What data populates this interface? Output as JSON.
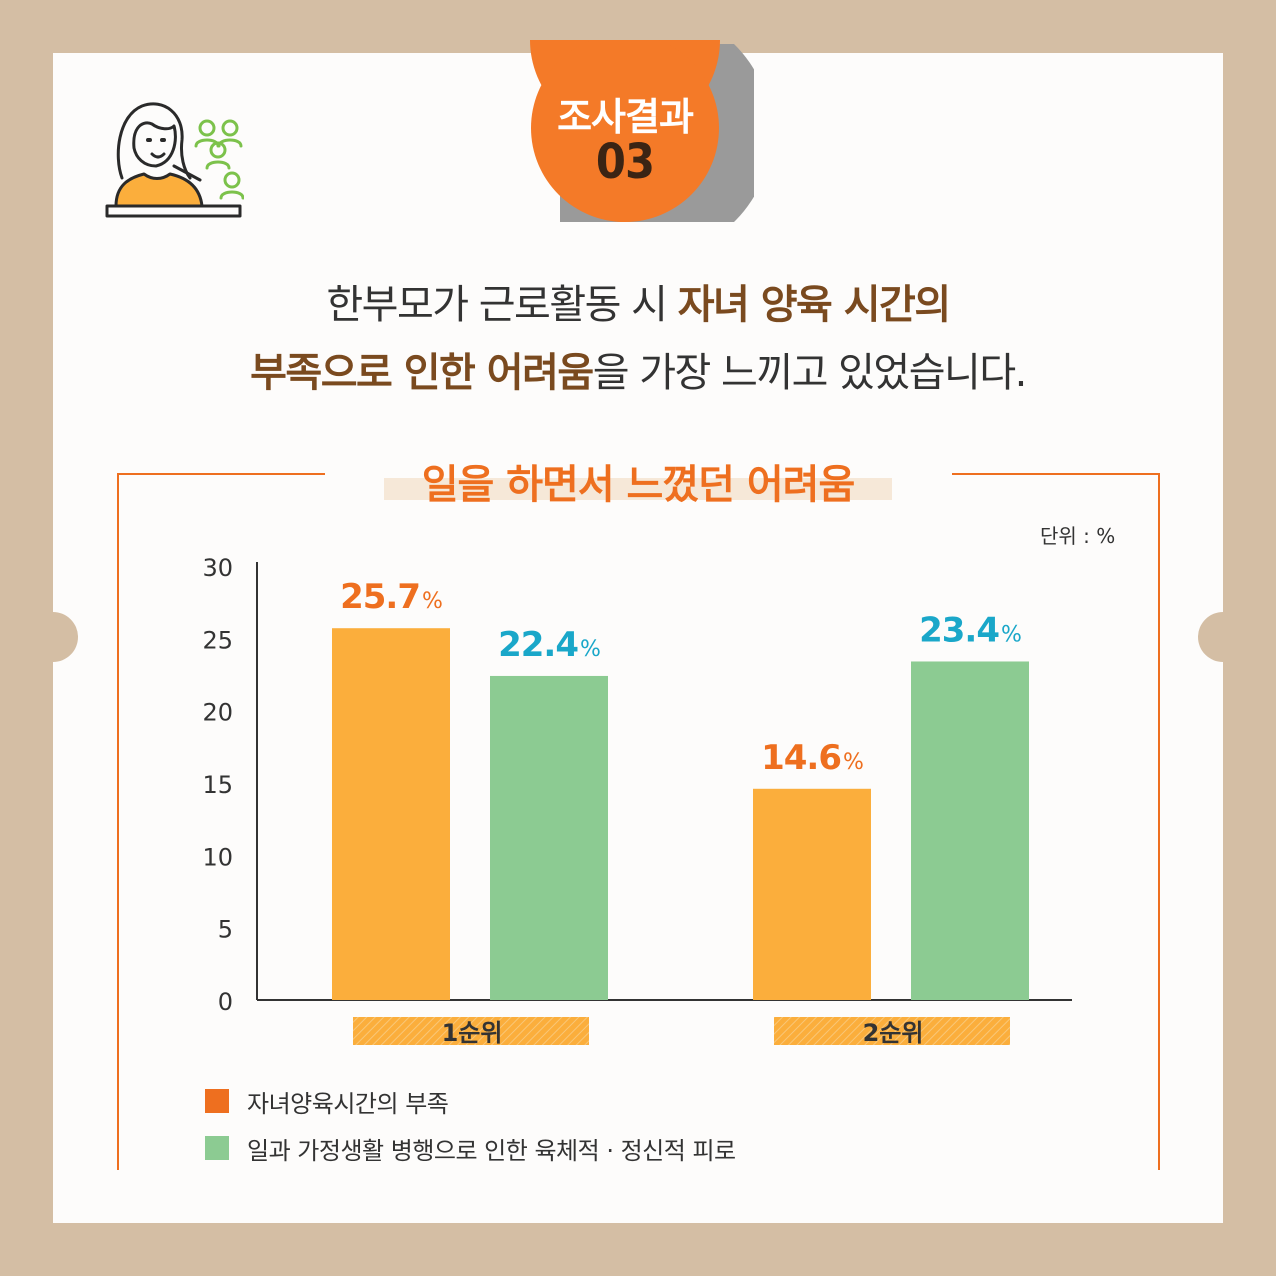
{
  "badge": {
    "title": "조사결과",
    "number": "03"
  },
  "headline": {
    "line1_plain": "한부모가 근로활동 시 ",
    "line1_bold": "자녀 양육 시간의",
    "line2_bold": "부족으로 인한 어려움",
    "line2_plain": "을 가장 느끼고 있었습니다."
  },
  "colors": {
    "accent": "#ee6f1f",
    "series1": "#fbae3c",
    "series2": "#8ccb92",
    "label1": "#ee6f1f",
    "label2": "#1aa7c9",
    "legend1": "#ee6f1f",
    "legend2": "#8ccb92"
  },
  "chart_data": {
    "type": "bar",
    "title": "일을 하면서 느꼈던 어려움",
    "unit_label": "단위 : %",
    "categories": [
      "1순위",
      "2순위"
    ],
    "series": [
      {
        "name": "자녀양육시간의 부족",
        "values": [
          25.7,
          14.6
        ]
      },
      {
        "name": "일과 가정생활 병행으로 인한 육체적 · 정신적 피로",
        "values": [
          22.4,
          23.4
        ]
      }
    ],
    "ylim": [
      0,
      30
    ],
    "yticks": [
      0,
      5,
      10,
      15,
      20,
      25,
      30
    ],
    "data_label_suffix": "%",
    "xlabel": "",
    "ylabel": "",
    "grid": false,
    "legend": "bottom-left"
  }
}
